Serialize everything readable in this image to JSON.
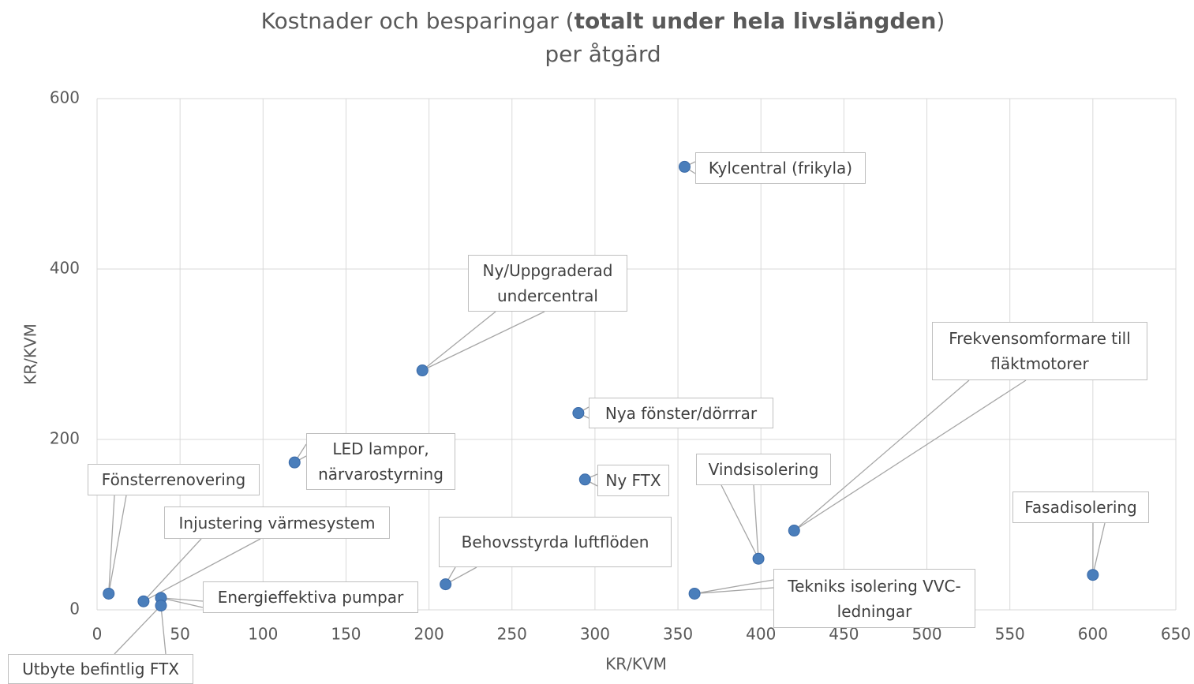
{
  "chart_data": {
    "type": "scatter",
    "title": [
      "Kostnader och besparingar (",
      "totalt under hela livslängden",
      ")"
    ],
    "subtitle": "per åtgärd",
    "xlabel": "KR/KVM",
    "ylabel": "KR/KVM",
    "labels": [
      "Kylcentral (frikyla)",
      "Ny/Uppgraderad undercentral",
      "Nya fönster/dörrrar",
      "LED lampor, närvarostyrning",
      "Ny FTX",
      "Fönsterrenovering",
      "Injustering värmesystem",
      "Energieffektiva pumpar",
      "Utbyte befintlig FTX",
      "Behovsstyrda luftflöden",
      "Vindsisolering",
      "Frekvensomformare till fläktmotorer",
      "Tekniks isolering VVC-ledningar",
      "Fasadisolering"
    ],
    "x": [
      354,
      196,
      290,
      119,
      294,
      7,
      28,
      38.5,
      38.5,
      210,
      398.5,
      420,
      360,
      600
    ],
    "y": [
      520,
      281,
      231,
      173,
      153,
      19,
      10,
      14,
      5,
      30,
      60,
      93,
      19,
      41
    ],
    "color": "#4a7ebb",
    "xlim": [
      0,
      650
    ],
    "xticks": [
      0,
      50,
      100,
      150,
      200,
      250,
      300,
      350,
      400,
      450,
      500,
      550,
      600,
      650
    ],
    "ylim": [
      0,
      600
    ],
    "yticks": [
      0,
      200,
      400,
      600
    ],
    "grid": true
  }
}
